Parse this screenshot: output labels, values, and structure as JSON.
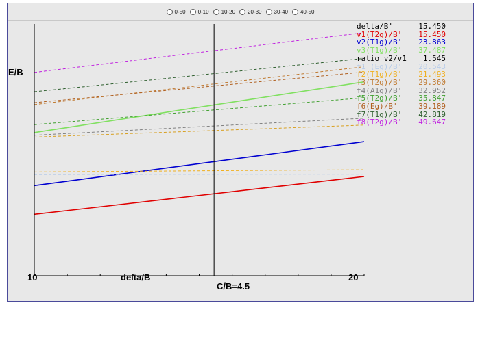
{
  "radio_options": [
    {
      "label": "0-50",
      "selected": false
    },
    {
      "label": "0-10",
      "selected": false
    },
    {
      "label": "10-20",
      "selected": false
    },
    {
      "label": "20-30",
      "selected": false
    },
    {
      "label": "30-40",
      "selected": false
    },
    {
      "label": "40-50",
      "selected": false
    }
  ],
  "axis": {
    "y_label": "E/B",
    "x_label": "delta/B",
    "x_min": "10",
    "x_max": "20",
    "cb_label": "C/B=4.5"
  },
  "legend": [
    {
      "name": "delta/B'",
      "value": "15.450",
      "color": "#000000"
    },
    {
      "name": "v1(T2g)/B'",
      "value": "15.450",
      "color": "#e00000"
    },
    {
      "name": "v2(T1g)/B'",
      "value": "23.863",
      "color": "#0000d0"
    },
    {
      "name": "v3(T1g)/B'",
      "value": "37.487",
      "color": "#80e060"
    },
    {
      "name": "ratio v2/v1",
      "value": "1.545",
      "color": "#000000"
    },
    {
      "name": "f1 (Eg)/B'",
      "value": "20.543",
      "color": "#b8cce8"
    },
    {
      "name": "f2(T1g)/B'",
      "value": "21.493",
      "color": "#f0b020"
    },
    {
      "name": "f3(T2g)/B'",
      "value": "29.360",
      "color": "#c07a30"
    },
    {
      "name": "f4(A1g)/B'",
      "value": "32.952",
      "color": "#808080"
    },
    {
      "name": "f5(T2g)/B'",
      "value": "35.847",
      "color": "#40a030"
    },
    {
      "name": "f6(Eg)/B'",
      "value": "39.189",
      "color": "#b06020"
    },
    {
      "name": "f7(T1g)/B'",
      "value": "42.819",
      "color": "#306030"
    },
    {
      "name": "f8(T2g)/B'",
      "value": "49.647",
      "color": "#c020e0"
    }
  ],
  "chart_data": {
    "type": "line",
    "xlabel": "delta/B",
    "ylabel": "E/B",
    "x_range": [
      10,
      20
    ],
    "marker_x": 15.45,
    "series": [
      {
        "name": "v1(T2g)/B'",
        "color": "#e00000",
        "style": "solid",
        "x": [
          10,
          20
        ],
        "y": [
          10.0,
          20.0
        ]
      },
      {
        "name": "v2(T1g)/B'",
        "color": "#0000d0",
        "style": "solid",
        "x": [
          10,
          20
        ],
        "y": [
          17.6,
          29.2
        ]
      },
      {
        "name": "v3(T1g)/B'",
        "color": "#80e060",
        "style": "solid",
        "x": [
          10,
          20
        ],
        "y": [
          31.6,
          45.0
        ]
      },
      {
        "name": "f1 (Eg)/B'",
        "color": "#b8cce8",
        "style": "dashed",
        "x": [
          10,
          20
        ],
        "y": [
          20.5,
          20.6
        ]
      },
      {
        "name": "f2(T1g)/B'",
        "color": "#f0b020",
        "style": "dashed",
        "x": [
          10,
          20
        ],
        "y": [
          21.2,
          21.8
        ]
      },
      {
        "name": "f2(T1g)/B' upper",
        "color": "#d8a020",
        "style": "dashed",
        "x": [
          10,
          20
        ],
        "y": [
          30.4,
          33.6
        ]
      },
      {
        "name": "f4(A1g)/B'",
        "color": "#808080",
        "style": "dashed",
        "x": [
          10,
          20
        ],
        "y": [
          30.9,
          35.4
        ]
      },
      {
        "name": "f3(T2g)/B'",
        "color": "#c07a30",
        "style": "dashed",
        "x": [
          10,
          20
        ],
        "y": [
          39.0,
          49.0
        ]
      },
      {
        "name": "f5(T2g)/B'",
        "color": "#40a030",
        "style": "dashed",
        "x": [
          10,
          20
        ],
        "y": [
          33.7,
          40.8
        ]
      },
      {
        "name": "f6(Eg)/B'",
        "color": "#b06020",
        "style": "dashed",
        "x": [
          10,
          20
        ],
        "y": [
          39.5,
          47.6
        ]
      },
      {
        "name": "f7(T1g)/B'",
        "color": "#306030",
        "style": "dashed",
        "x": [
          10,
          20
        ],
        "y": [
          42.4,
          51.2
        ]
      },
      {
        "name": "f8(T2g)/B'",
        "color": "#c020e0",
        "style": "dashed",
        "x": [
          10,
          20
        ],
        "y": [
          47.5,
          58.0
        ]
      }
    ]
  }
}
